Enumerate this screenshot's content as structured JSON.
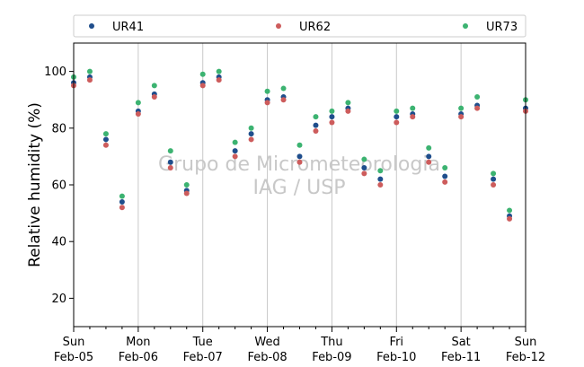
{
  "chart_data": {
    "type": "scatter",
    "title": "",
    "xlabel": "",
    "ylabel": "Relative humidity (%)",
    "ylim": [
      10,
      110
    ],
    "yticks": [
      20,
      40,
      60,
      80,
      100
    ],
    "xlim": [
      "2023-02-05",
      "2023-02-12"
    ],
    "xticks": [
      {
        "day": "Sun",
        "date": "Feb-05"
      },
      {
        "day": "Mon",
        "date": "Feb-06"
      },
      {
        "day": "Tue",
        "date": "Feb-07"
      },
      {
        "day": "Wed",
        "date": "Feb-08"
      },
      {
        "day": "Thu",
        "date": "Feb-09"
      },
      {
        "day": "Fri",
        "date": "Feb-10"
      },
      {
        "day": "Sat",
        "date": "Feb-11"
      },
      {
        "day": "Sun",
        "date": "Feb-12"
      }
    ],
    "grid": "vertical",
    "legend_position": "top",
    "watermark": [
      "Grupo de Micrometeorologia",
      "IAG / USP"
    ],
    "x": [
      "2023-02-05 00:00",
      "2023-02-05 06:00",
      "2023-02-05 12:00",
      "2023-02-05 18:00",
      "2023-02-06 00:00",
      "2023-02-06 06:00",
      "2023-02-06 12:00",
      "2023-02-06 18:00",
      "2023-02-07 00:00",
      "2023-02-07 06:00",
      "2023-02-07 12:00",
      "2023-02-07 18:00",
      "2023-02-08 00:00",
      "2023-02-08 06:00",
      "2023-02-08 12:00",
      "2023-02-08 18:00",
      "2023-02-09 00:00",
      "2023-02-09 06:00",
      "2023-02-09 12:00",
      "2023-02-09 18:00",
      "2023-02-10 00:00",
      "2023-02-10 06:00",
      "2023-02-10 12:00",
      "2023-02-10 18:00",
      "2023-02-11 00:00",
      "2023-02-11 06:00",
      "2023-02-11 12:00",
      "2023-02-11 18:00",
      "2023-02-12 00:00"
    ],
    "series": [
      {
        "name": "UR41",
        "color": "#1f4e8c",
        "values": [
          96,
          98,
          76,
          54,
          86,
          92,
          68,
          58,
          96,
          98,
          72,
          78,
          90,
          91,
          70,
          81,
          84,
          87,
          66,
          62,
          84,
          85,
          70,
          63,
          85,
          88,
          62,
          49,
          87
        ]
      },
      {
        "name": "UR62",
        "color": "#cd5c5c",
        "values": [
          95,
          97,
          74,
          52,
          85,
          91,
          66,
          57,
          95,
          97,
          70,
          76,
          89,
          90,
          68,
          79,
          82,
          86,
          64,
          60,
          82,
          84,
          68,
          61,
          84,
          87,
          60,
          48,
          86
        ]
      },
      {
        "name": "UR73",
        "color": "#3cb371",
        "values": [
          98,
          100,
          78,
          56,
          89,
          95,
          72,
          60,
          99,
          100,
          75,
          80,
          93,
          94,
          74,
          84,
          86,
          89,
          69,
          65,
          86,
          87,
          73,
          66,
          87,
          91,
          64,
          51,
          90
        ]
      }
    ]
  }
}
